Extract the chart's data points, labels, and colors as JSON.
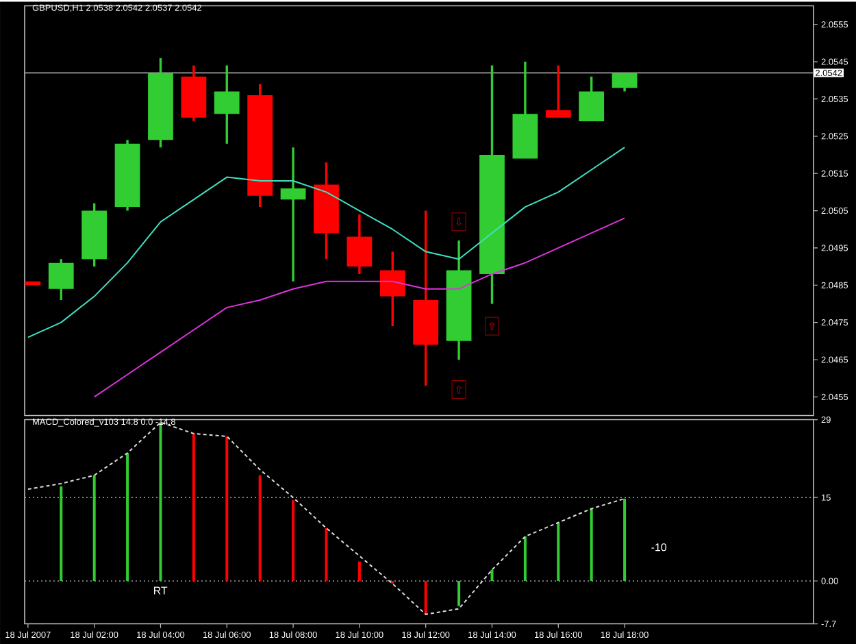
{
  "chart_data": [
    {
      "type": "candlestick",
      "title": "GBPUSD,H1 2.0538 2.0542 2.0537 2.0542",
      "x": [
        "2007-07-18T00:00",
        "2007-07-18T01:00",
        "2007-07-18T02:00",
        "2007-07-18T03:00",
        "2007-07-18T04:00",
        "2007-07-18T05:00",
        "2007-07-18T06:00",
        "2007-07-18T07:00",
        "2007-07-18T08:00",
        "2007-07-18T09:00",
        "2007-07-18T10:00",
        "2007-07-18T11:00",
        "2007-07-18T12:00",
        "2007-07-18T13:00",
        "2007-07-18T14:00",
        "2007-07-18T15:00",
        "2007-07-18T16:00",
        "2007-07-18T17:00",
        "2007-07-18T18:00"
      ],
      "ohlc": [
        [
          2.0486,
          2.0486,
          2.0485,
          2.0485
        ],
        [
          2.0484,
          2.0492,
          2.0481,
          2.0491
        ],
        [
          2.0492,
          2.0507,
          2.049,
          2.0505
        ],
        [
          2.0506,
          2.0524,
          2.0505,
          2.0523
        ],
        [
          2.0524,
          2.0546,
          2.0522,
          2.0542
        ],
        [
          2.0541,
          2.0544,
          2.0529,
          2.053
        ],
        [
          2.0531,
          2.0544,
          2.0523,
          2.0537
        ],
        [
          2.0536,
          2.0539,
          2.0506,
          2.0509
        ],
        [
          2.0508,
          2.0522,
          2.0486,
          2.0511
        ],
        [
          2.0512,
          2.0518,
          2.0492,
          2.0499
        ],
        [
          2.0498,
          2.0504,
          2.0488,
          2.049
        ],
        [
          2.0489,
          2.0494,
          2.0474,
          2.0482
        ],
        [
          2.0481,
          2.0505,
          2.0458,
          2.0469
        ],
        [
          2.047,
          2.0497,
          2.0465,
          2.0489
        ],
        [
          2.0488,
          2.0544,
          2.048,
          2.052
        ],
        [
          2.0519,
          2.0545,
          2.0519,
          2.0531
        ],
        [
          2.0532,
          2.0544,
          2.053,
          2.053
        ],
        [
          2.0529,
          2.0541,
          2.0529,
          2.0537
        ],
        [
          2.0538,
          2.0542,
          2.0537,
          2.0542
        ]
      ],
      "colors": [
        "#ff0000",
        "#32cd32",
        "#32cd32",
        "#32cd32",
        "#32cd32",
        "#ff0000",
        "#32cd32",
        "#ff0000",
        "#32cd32",
        "#ff0000",
        "#ff0000",
        "#ff0000",
        "#ff0000",
        "#32cd32",
        "#32cd32",
        "#32cd32",
        "#ff0000",
        "#32cd32",
        "#32cd32"
      ],
      "series": [
        {
          "type": "line",
          "color": "#40e0c0",
          "values": [
            2.0471,
            2.0475,
            2.0482,
            2.0491,
            2.0502,
            2.0508,
            2.0514,
            2.0513,
            2.0513,
            2.051,
            2.0505,
            2.05,
            2.0494,
            2.0492,
            2.0499,
            2.0506,
            2.051,
            2.0516,
            2.0522
          ]
        },
        {
          "type": "line",
          "color": "#dd33dd",
          "values": [
            null,
            null,
            2.0455,
            2.0461,
            2.0467,
            2.0473,
            2.0479,
            2.0481,
            2.0484,
            2.0486,
            2.0486,
            2.0486,
            2.0484,
            2.0484,
            2.0488,
            2.0491,
            2.0495,
            2.0499,
            2.0503
          ]
        }
      ],
      "xlim": [
        "2007-07-17T23:54",
        "2007-07-18T23:42"
      ],
      "ylim": [
        2.045,
        2.056
      ],
      "yticks": [
        2.0455,
        2.0465,
        2.0475,
        2.0485,
        2.0495,
        2.0505,
        2.0515,
        2.0525,
        2.0535,
        2.0545,
        2.0555
      ],
      "tick_labels": "y",
      "ref_lines": [
        {
          "axis": "y",
          "value": 2.0542,
          "label": "2.0542",
          "color": "#a0a0a0"
        }
      ],
      "annotations": [
        {
          "text": "⇩",
          "x": "2007-07-18T13:00",
          "y": 2.0502
        },
        {
          "text": "⇧",
          "x": "2007-07-18T14:00",
          "y": 2.0474
        },
        {
          "text": "⇧",
          "x": "2007-07-18T13:00",
          "y": 2.0457
        }
      ]
    },
    {
      "type": "bar",
      "title": "MACD_Colored_v103 14.8 0.0 -14.8",
      "x": [
        "2007-07-18T00:00",
        "2007-07-18T01:00",
        "2007-07-18T02:00",
        "2007-07-18T03:00",
        "2007-07-18T04:00",
        "2007-07-18T05:00",
        "2007-07-18T06:00",
        "2007-07-18T07:00",
        "2007-07-18T08:00",
        "2007-07-18T09:00",
        "2007-07-18T10:00",
        "2007-07-18T11:00",
        "2007-07-18T12:00",
        "2007-07-18T13:00",
        "2007-07-18T14:00",
        "2007-07-18T15:00",
        "2007-07-18T16:00",
        "2007-07-18T17:00",
        "2007-07-18T18:00"
      ],
      "series": [
        {
          "type": "bar",
          "colors": [
            "#ff0000",
            "#32cd32",
            "#32cd32",
            "#32cd32",
            "#32cd32",
            "#ff0000",
            "#ff0000",
            "#ff0000",
            "#ff0000",
            "#ff0000",
            "#ff0000",
            "#ff0000",
            "#ff0000",
            "#32cd32",
            "#32cd32",
            "#32cd32",
            "#32cd32",
            "#32cd32",
            "#32cd32"
          ],
          "values": [
            null,
            17,
            19,
            23,
            28.5,
            26.5,
            26,
            19,
            14.5,
            9.5,
            3.5,
            -0.5,
            -6,
            -4.5,
            2,
            8,
            10.5,
            13,
            14.8
          ]
        },
        {
          "type": "line",
          "color": "#dcdcdc",
          "line_style": "dashed",
          "values": [
            16.5,
            17.5,
            19,
            23,
            28.5,
            26.5,
            26,
            20,
            15,
            9.5,
            4.5,
            -0.5,
            -6,
            -5,
            2,
            8,
            10.5,
            13,
            14.8
          ]
        }
      ],
      "xlim": [
        "2007-07-17T23:54",
        "2007-07-18T23:42"
      ],
      "ylim": [
        -7.7,
        29
      ],
      "xticks": [
        {
          "value": "2007-07-18T00:00",
          "label": "18 Jul 2007"
        },
        {
          "value": "2007-07-18T02:00",
          "label": "18 Jul 02:00"
        },
        {
          "value": "2007-07-18T04:00",
          "label": "18 Jul 04:00"
        },
        {
          "value": "2007-07-18T06:00",
          "label": "18 Jul 06:00"
        },
        {
          "value": "2007-07-18T08:00",
          "label": "18 Jul 08:00"
        },
        {
          "value": "2007-07-18T10:00",
          "label": "18 Jul 10:00"
        },
        {
          "value": "2007-07-18T12:00",
          "label": "18 Jul 12:00"
        },
        {
          "value": "2007-07-18T14:00",
          "label": "18 Jul 14:00"
        },
        {
          "value": "2007-07-18T16:00",
          "label": "18 Jul 16:00"
        },
        {
          "value": "2007-07-18T18:00",
          "label": "18 Jul 18:00"
        }
      ],
      "yticks": [
        -7.7,
        {
          "value": 0,
          "label": "0.00"
        },
        15,
        29
      ],
      "ref_lines": [
        {
          "axis": "y",
          "value": 15,
          "color": "#a0a0a0",
          "line_style": "dotted"
        },
        {
          "axis": "y",
          "value": 0,
          "color": "#a0a0a0",
          "line_style": "dotted"
        }
      ],
      "annotations": [
        "RT",
        "-10"
      ]
    }
  ]
}
